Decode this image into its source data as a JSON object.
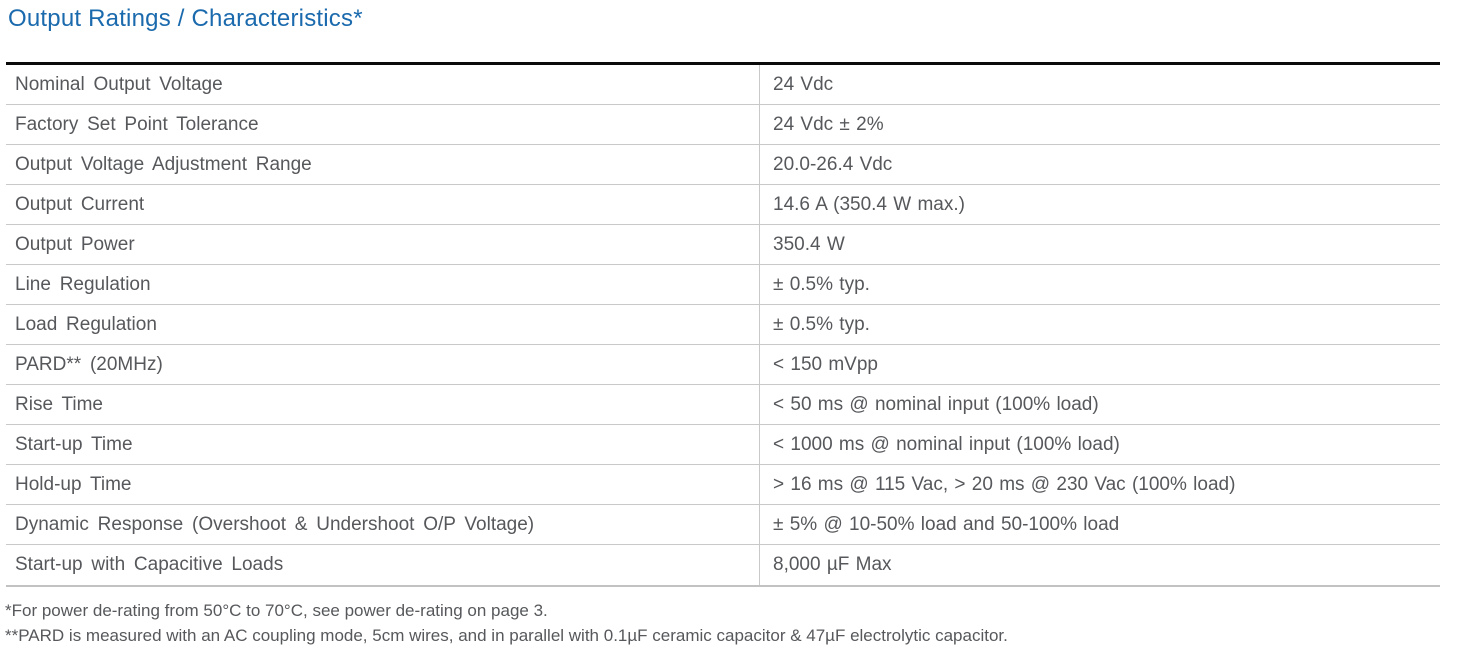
{
  "page": {
    "title": "Output Ratings / Characteristics*"
  },
  "colors": {
    "title_blue": "#1a6aad",
    "body_text": "#56585b",
    "grid_line": "#c9c9c9",
    "table_top_border": "#0a0a0a"
  },
  "table": {
    "rows": [
      {
        "label": "Nominal Output Voltage",
        "value": "24 Vdc"
      },
      {
        "label": "Factory Set Point Tolerance",
        "value": "24 Vdc ± 2%"
      },
      {
        "label": "Output Voltage Adjustment Range",
        "value": "20.0-26.4 Vdc"
      },
      {
        "label": "Output Current",
        "value": "14.6 A (350.4 W max.)"
      },
      {
        "label": "Output Power",
        "value": "350.4 W"
      },
      {
        "label": "Line Regulation",
        "value": "± 0.5% typ."
      },
      {
        "label": "Load Regulation",
        "value": "± 0.5% typ."
      },
      {
        "label": "PARD** (20MHz)",
        "value": "< 150 mVpp"
      },
      {
        "label": "Rise Time",
        "value": "< 50 ms @ nominal input (100% load)"
      },
      {
        "label": "Start-up Time",
        "value": "< 1000 ms @ nominal input (100% load)"
      },
      {
        "label": "Hold-up Time",
        "value": "> 16 ms @ 115 Vac, > 20 ms @ 230 Vac (100% load)"
      },
      {
        "label": "Dynamic Response (Overshoot & Undershoot O/P Voltage)",
        "value": "± 5% @ 10-50% load and 50-100% load"
      },
      {
        "label": "Start-up with Capacitive Loads",
        "value": "8,000 µF Max"
      }
    ]
  },
  "footnotes": [
    "*For power de-rating from 50°C to 70°C, see power de-rating on page 3.",
    "**PARD is measured with an AC coupling mode, 5cm wires, and in parallel with 0.1µF ceramic capacitor & 47µF electrolytic capacitor."
  ]
}
